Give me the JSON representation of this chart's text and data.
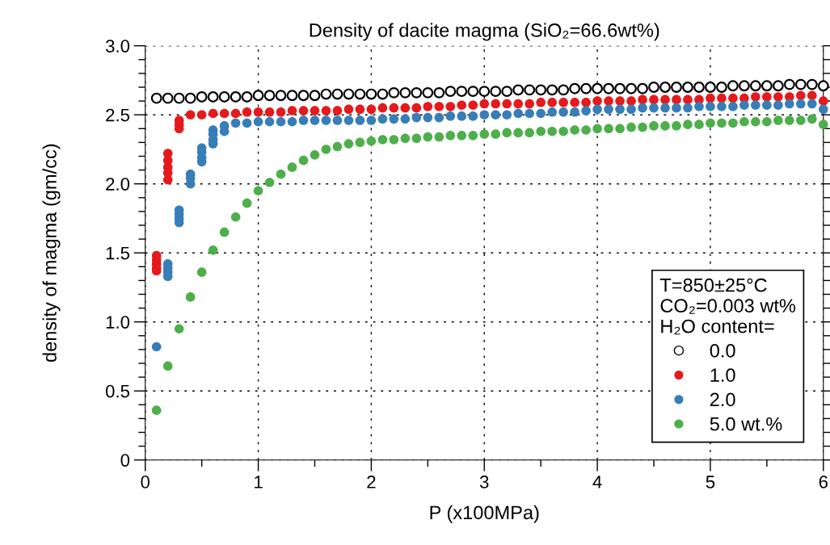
{
  "chart_data": {
    "type": "scatter",
    "title": "Density of dacite magma (SiO₂=66.6wt%)",
    "xlabel": "P (x100MPa)",
    "ylabel": "density of magma (gm/cc)",
    "legend_title": "T=850±25°C\nCO₂=0.003 wt%\nH₂O content=",
    "xlim": [
      0,
      6
    ],
    "ylim": [
      0,
      3.0
    ],
    "xticks": [
      0,
      {
        "value": 0.5,
        "label": null
      },
      1,
      {
        "value": 1.5,
        "label": null
      },
      2,
      {
        "value": 2.5,
        "label": null
      },
      3,
      {
        "value": 3.5,
        "label": null
      },
      4,
      {
        "value": 4.5,
        "label": null
      },
      5,
      {
        "value": 5.5,
        "label": null
      },
      6
    ],
    "yticks": [
      0,
      {
        "value": 0.1,
        "label": null
      },
      {
        "value": 0.2,
        "label": null
      },
      {
        "value": 0.3,
        "label": null
      },
      {
        "value": 0.4,
        "label": null
      },
      0.5,
      {
        "value": 0.6,
        "label": null
      },
      {
        "value": 0.7,
        "label": null
      },
      {
        "value": 0.8,
        "label": null
      },
      {
        "value": 0.9,
        "label": null
      },
      {
        "value": 1.0,
        "label": "1.0"
      },
      {
        "value": 1.1,
        "label": null
      },
      {
        "value": 1.2,
        "label": null
      },
      {
        "value": 1.3,
        "label": null
      },
      {
        "value": 1.4,
        "label": null
      },
      1.5,
      {
        "value": 1.6,
        "label": null
      },
      {
        "value": 1.7,
        "label": null
      },
      {
        "value": 1.8,
        "label": null
      },
      {
        "value": 1.9,
        "label": null
      },
      {
        "value": 2.0,
        "label": "2.0"
      },
      {
        "value": 2.1,
        "label": null
      },
      {
        "value": 2.2,
        "label": null
      },
      {
        "value": 2.3,
        "label": null
      },
      {
        "value": 2.4,
        "label": null
      },
      2.5,
      {
        "value": 2.6,
        "label": null
      },
      {
        "value": 2.7,
        "label": null
      },
      {
        "value": 2.8,
        "label": null
      },
      {
        "value": 2.9,
        "label": null
      },
      {
        "value": 3.0,
        "label": "3.0"
      }
    ],
    "grid": true,
    "legend": "bottom right",
    "marker": "circle",
    "series": [
      {
        "name": "0.0",
        "color": "#000000",
        "x": [
          0.1,
          0.2,
          0.3,
          0.4,
          0.5,
          0.6,
          0.7,
          0.8,
          0.9,
          1.0,
          1.1,
          1.2,
          1.3,
          1.4,
          1.5,
          1.6,
          1.7,
          1.8,
          1.9,
          2.0,
          2.1,
          2.2,
          2.3,
          2.4,
          2.5,
          2.6,
          2.7,
          2.8,
          2.9,
          3.0,
          3.1,
          3.2,
          3.3,
          3.4,
          3.5,
          3.6,
          3.7,
          3.8,
          3.9,
          4.0,
          4.1,
          4.2,
          4.3,
          4.4,
          4.5,
          4.6,
          4.7,
          4.8,
          4.9,
          5.0,
          5.1,
          5.2,
          5.3,
          5.4,
          5.5,
          5.6,
          5.7,
          5.8,
          5.9,
          6.0
        ],
        "values": [
          2.62,
          2.62,
          2.62,
          2.62,
          2.63,
          2.63,
          2.63,
          2.63,
          2.63,
          2.64,
          2.64,
          2.64,
          2.64,
          2.64,
          2.64,
          2.65,
          2.65,
          2.65,
          2.65,
          2.65,
          2.65,
          2.66,
          2.66,
          2.66,
          2.66,
          2.66,
          2.67,
          2.67,
          2.67,
          2.67,
          2.67,
          2.67,
          2.68,
          2.68,
          2.68,
          2.68,
          2.68,
          2.69,
          2.69,
          2.69,
          2.69,
          2.69,
          2.69,
          2.69,
          2.7,
          2.7,
          2.7,
          2.7,
          2.7,
          2.7,
          2.7,
          2.71,
          2.71,
          2.71,
          2.71,
          2.71,
          2.72,
          2.72,
          2.72,
          2.71
        ]
      },
      {
        "name": "1.0",
        "color": "#e41a1c",
        "x": [
          0.1,
          0.1,
          0.1,
          0.1,
          0.1,
          0.2,
          0.2,
          0.2,
          0.2,
          0.2,
          0.3,
          0.3,
          0.3,
          0.4,
          0.5,
          0.6,
          0.7,
          0.8,
          0.9,
          1.0,
          1.1,
          1.2,
          1.3,
          1.4,
          1.5,
          1.6,
          1.7,
          1.8,
          1.9,
          2.0,
          2.1,
          2.2,
          2.3,
          2.4,
          2.5,
          2.6,
          2.7,
          2.8,
          2.9,
          3.0,
          3.1,
          3.2,
          3.3,
          3.4,
          3.5,
          3.6,
          3.7,
          3.8,
          3.9,
          4.0,
          4.1,
          4.2,
          4.3,
          4.4,
          4.5,
          4.6,
          4.7,
          4.8,
          4.9,
          5.0,
          5.1,
          5.2,
          5.3,
          5.4,
          5.5,
          5.6,
          5.7,
          5.8,
          5.9,
          6.0
        ],
        "values": [
          1.48,
          1.45,
          1.42,
          1.39,
          1.37,
          2.22,
          2.17,
          2.12,
          2.08,
          2.03,
          2.46,
          2.43,
          2.4,
          2.5,
          2.5,
          2.51,
          2.51,
          2.51,
          2.52,
          2.52,
          2.52,
          2.52,
          2.53,
          2.53,
          2.53,
          2.53,
          2.53,
          2.54,
          2.54,
          2.54,
          2.55,
          2.55,
          2.55,
          2.55,
          2.56,
          2.56,
          2.56,
          2.57,
          2.57,
          2.58,
          2.58,
          2.58,
          2.58,
          2.58,
          2.59,
          2.59,
          2.59,
          2.59,
          2.59,
          2.6,
          2.6,
          2.6,
          2.6,
          2.61,
          2.61,
          2.61,
          2.61,
          2.61,
          2.61,
          2.62,
          2.62,
          2.62,
          2.62,
          2.63,
          2.63,
          2.63,
          2.63,
          2.64,
          2.64,
          2.6
        ]
      },
      {
        "name": "2.0",
        "color": "#377eb8",
        "x": [
          0.1,
          0.2,
          0.2,
          0.2,
          0.2,
          0.3,
          0.3,
          0.3,
          0.3,
          0.4,
          0.4,
          0.4,
          0.5,
          0.5,
          0.5,
          0.5,
          0.6,
          0.6,
          0.6,
          0.6,
          0.7,
          0.7,
          0.8,
          0.9,
          1.0,
          1.1,
          1.2,
          1.3,
          1.4,
          1.5,
          1.6,
          1.7,
          1.8,
          1.9,
          2.0,
          2.1,
          2.2,
          2.3,
          2.4,
          2.5,
          2.6,
          2.7,
          2.8,
          2.9,
          3.0,
          3.1,
          3.2,
          3.3,
          3.4,
          3.5,
          3.6,
          3.7,
          3.8,
          3.9,
          4.0,
          4.1,
          4.2,
          4.3,
          4.4,
          4.5,
          4.6,
          4.7,
          4.8,
          4.9,
          5.0,
          5.1,
          5.2,
          5.3,
          5.4,
          5.5,
          5.6,
          5.7,
          5.8,
          5.9,
          6.0
        ],
        "values": [
          0.82,
          1.42,
          1.39,
          1.36,
          1.33,
          1.81,
          1.78,
          1.75,
          1.72,
          2.07,
          2.04,
          2.0,
          2.26,
          2.23,
          2.19,
          2.16,
          2.39,
          2.36,
          2.32,
          2.29,
          2.42,
          2.38,
          2.44,
          2.44,
          2.45,
          2.45,
          2.45,
          2.45,
          2.46,
          2.46,
          2.46,
          2.46,
          2.46,
          2.46,
          2.46,
          2.47,
          2.47,
          2.47,
          2.48,
          2.48,
          2.48,
          2.49,
          2.49,
          2.49,
          2.5,
          2.5,
          2.5,
          2.51,
          2.51,
          2.51,
          2.52,
          2.52,
          2.52,
          2.53,
          2.54,
          2.54,
          2.54,
          2.54,
          2.55,
          2.55,
          2.55,
          2.55,
          2.55,
          2.56,
          2.56,
          2.56,
          2.56,
          2.57,
          2.57,
          2.57,
          2.57,
          2.58,
          2.58,
          2.58,
          2.54
        ]
      },
      {
        "name": "5.0 wt.%",
        "color": "#4daf4a",
        "x": [
          0.1,
          0.2,
          0.3,
          0.4,
          0.5,
          0.6,
          0.7,
          0.8,
          0.9,
          1.0,
          1.1,
          1.2,
          1.3,
          1.4,
          1.5,
          1.6,
          1.7,
          1.8,
          1.9,
          2.0,
          2.1,
          2.2,
          2.3,
          2.4,
          2.5,
          2.6,
          2.7,
          2.8,
          2.9,
          3.0,
          3.1,
          3.2,
          3.3,
          3.4,
          3.5,
          3.6,
          3.7,
          3.8,
          3.9,
          4.0,
          4.1,
          4.2,
          4.3,
          4.4,
          4.5,
          4.6,
          4.7,
          4.8,
          4.9,
          5.0,
          5.1,
          5.2,
          5.3,
          5.4,
          5.5,
          5.6,
          5.7,
          5.8,
          5.9,
          6.0
        ],
        "values": [
          0.36,
          0.68,
          0.95,
          1.18,
          1.36,
          1.52,
          1.65,
          1.76,
          1.86,
          1.95,
          2.01,
          2.07,
          2.12,
          2.17,
          2.21,
          2.25,
          2.27,
          2.29,
          2.3,
          2.31,
          2.32,
          2.32,
          2.33,
          2.33,
          2.34,
          2.34,
          2.35,
          2.35,
          2.35,
          2.36,
          2.36,
          2.37,
          2.37,
          2.37,
          2.38,
          2.38,
          2.38,
          2.39,
          2.39,
          2.4,
          2.4,
          2.4,
          2.41,
          2.41,
          2.42,
          2.42,
          2.42,
          2.43,
          2.43,
          2.44,
          2.44,
          2.44,
          2.45,
          2.45,
          2.45,
          2.46,
          2.46,
          2.46,
          2.47,
          2.43
        ]
      }
    ]
  }
}
